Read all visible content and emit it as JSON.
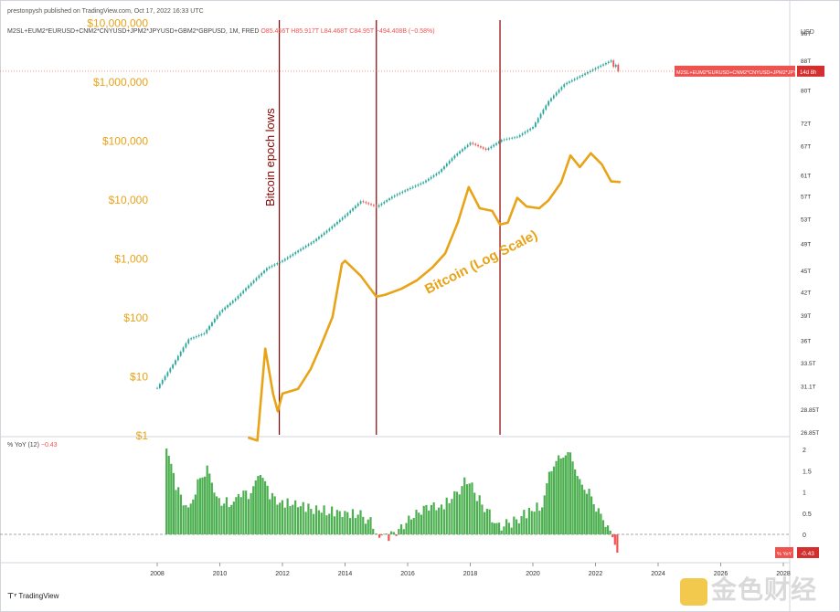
{
  "header": {
    "published": "prestonpysh published on TradingView.com, Oct 17, 2022 16:33 UTC",
    "symbol": "M2SL+EUM2*EURUSD+CNM2*CNYUSD+JPM2*JPYUSD+GBM2*GBPUSD, 1M, FRED",
    "ohlc": "O85.456T H85.917T L84.468T C84.95T −494.408B (−0.58%)",
    "currency": "USD",
    "price_tag": "M2SL+EUM2*EURUSD+CNM2*CNYUSD+JPM2*JPY...",
    "price_tag_time": "14d 8h"
  },
  "yoy_pane": {
    "label": "% YoY (12)",
    "value": "−0.43",
    "tag_label": "% YoY",
    "tag_value": "-0.43"
  },
  "footer": {
    "brand": "TradingView"
  },
  "watermark": {
    "text": "金色财经"
  },
  "colors": {
    "candle_up": "#26a69a",
    "candle_down": "#ef5350",
    "bitcoin": "#e8a317",
    "epoch_line": "#8b0000",
    "yoy_up": "#4caf50",
    "yoy_down": "#ef5350",
    "price_tag": "#ef5350"
  },
  "chart_data": [
    {
      "type": "line",
      "series": [
        {
          "name": "M2SL+EUM2*EURUSD+CNM2*CNYUSD+JPM2*JPYUSD+GBM2*GBPUSD",
          "style": "candlestick",
          "x": [
            2008.0,
            2008.5,
            2009.0,
            2009.5,
            2010.0,
            2010.5,
            2011.0,
            2011.5,
            2012.0,
            2012.5,
            2013.0,
            2013.5,
            2014.0,
            2014.5,
            2015.0,
            2015.5,
            2016.0,
            2016.5,
            2017.0,
            2017.5,
            2018.0,
            2018.5,
            2019.0,
            2019.5,
            2020.0,
            2020.5,
            2021.0,
            2021.5,
            2022.0,
            2022.5,
            2022.8
          ],
          "y": [
            30.3,
            32.7,
            35.5,
            36.2,
            38.8,
            40.5,
            42.6,
            44.7,
            45.8,
            47.3,
            48.8,
            50.8,
            53.0,
            55.5,
            54.5,
            56.3,
            57.7,
            59.0,
            61.0,
            64.3,
            67.0,
            65.5,
            67.6,
            68.3,
            70.5,
            76.6,
            80.9,
            83.0,
            85.2,
            87.3,
            84.95
          ]
        },
        {
          "name": "Bitcoin (Log Scale)",
          "x": [
            2010.9,
            2011.2,
            2011.45,
            2011.7,
            2011.85,
            2012.0,
            2012.5,
            2012.9,
            2013.2,
            2013.6,
            2013.9,
            2014.0,
            2014.5,
            2015.0,
            2015.3,
            2015.8,
            2016.3,
            2016.8,
            2017.2,
            2017.6,
            2017.95,
            2018.3,
            2018.7,
            2018.95,
            2019.2,
            2019.5,
            2019.8,
            2020.2,
            2020.5,
            2020.9,
            2021.2,
            2021.5,
            2021.85,
            2022.2,
            2022.5,
            2022.8
          ],
          "y": [
            0.9,
            0.8,
            29,
            5,
            2.5,
            5,
            6,
            13,
            30,
            100,
            800,
            900,
            500,
            220,
            240,
            300,
            420,
            700,
            1200,
            4000,
            16000,
            7000,
            6300,
            3700,
            4000,
            10500,
            7500,
            7000,
            9500,
            19000,
            55000,
            35000,
            60000,
            39000,
            20000,
            19500
          ]
        }
      ],
      "right_axis_ticks": [
        "96T",
        "88T",
        "80T",
        "72T",
        "67T",
        "61T",
        "57T",
        "53T",
        "49T",
        "45T",
        "42T",
        "39T",
        "36T",
        "33.5T",
        "31.1T",
        "28.85T",
        "26.85T"
      ],
      "right_axis_values": [
        96,
        88,
        80,
        72,
        67,
        61,
        57,
        53,
        49,
        45,
        42,
        39,
        36,
        33.5,
        31.1,
        28.85,
        26.85
      ],
      "left_axis_ticks": [
        "$10,000,000",
        "$1,000,000",
        "$100,000",
        "$10,000",
        "$1,000",
        "$100",
        "$10",
        "$1"
      ],
      "left_axis_values": [
        10000000,
        1000000,
        100000,
        10000,
        1000,
        100,
        10,
        1
      ],
      "x_ticks": [
        "2008",
        "2010",
        "2012",
        "2014",
        "2016",
        "2018",
        "2020",
        "2022",
        "2024",
        "2026",
        "2028"
      ],
      "x_tick_values": [
        2008,
        2010,
        2012,
        2014,
        2016,
        2018,
        2020,
        2022,
        2024,
        2026,
        2028
      ],
      "vertical_markers": [
        2011.9,
        2015.0,
        2018.95
      ],
      "annotations": [
        {
          "text": "Bitcoin epoch lows",
          "color": "#8b0000",
          "rotation": "vertical"
        },
        {
          "text": "Bitcoin (Log Scale)",
          "color": "#e8a317",
          "rotation": "diagonal"
        }
      ],
      "scale": "log",
      "grid": false
    },
    {
      "type": "bar",
      "series": [
        {
          "name": "% YoY (12)",
          "x": [
            2008.3,
            2008.6,
            2009.0,
            2009.3,
            2009.6,
            2009.9,
            2010.3,
            2010.6,
            2011.0,
            2011.3,
            2011.6,
            2012.0,
            2012.5,
            2013.0,
            2013.5,
            2014.0,
            2014.5,
            2014.9,
            2015.1,
            2015.4,
            2015.8,
            2016.2,
            2016.6,
            2017.0,
            2017.5,
            2017.9,
            2018.3,
            2018.7,
            2019.0,
            2019.4,
            2019.8,
            2020.3,
            2020.6,
            2020.9,
            2021.2,
            2021.5,
            2021.8,
            2022.1,
            2022.4,
            2022.7
          ],
          "y": [
            2.0,
            1.1,
            0.6,
            1.2,
            1.5,
            0.8,
            0.75,
            1.0,
            0.9,
            1.4,
            0.9,
            0.75,
            0.7,
            0.6,
            0.55,
            0.5,
            0.45,
            0.25,
            -0.1,
            -0.1,
            0.2,
            0.4,
            0.7,
            0.6,
            0.9,
            1.3,
            0.8,
            0.4,
            0.2,
            0.3,
            0.5,
            0.7,
            1.6,
            1.9,
            2.0,
            1.3,
            1.0,
            0.5,
            0.1,
            -0.43
          ]
        }
      ],
      "y_ticks": [
        "2",
        "1.5",
        "1",
        "0.5",
        "0"
      ],
      "y_tick_values": [
        2,
        1.5,
        1,
        0.5,
        0
      ],
      "zero_line": "dashed"
    }
  ]
}
